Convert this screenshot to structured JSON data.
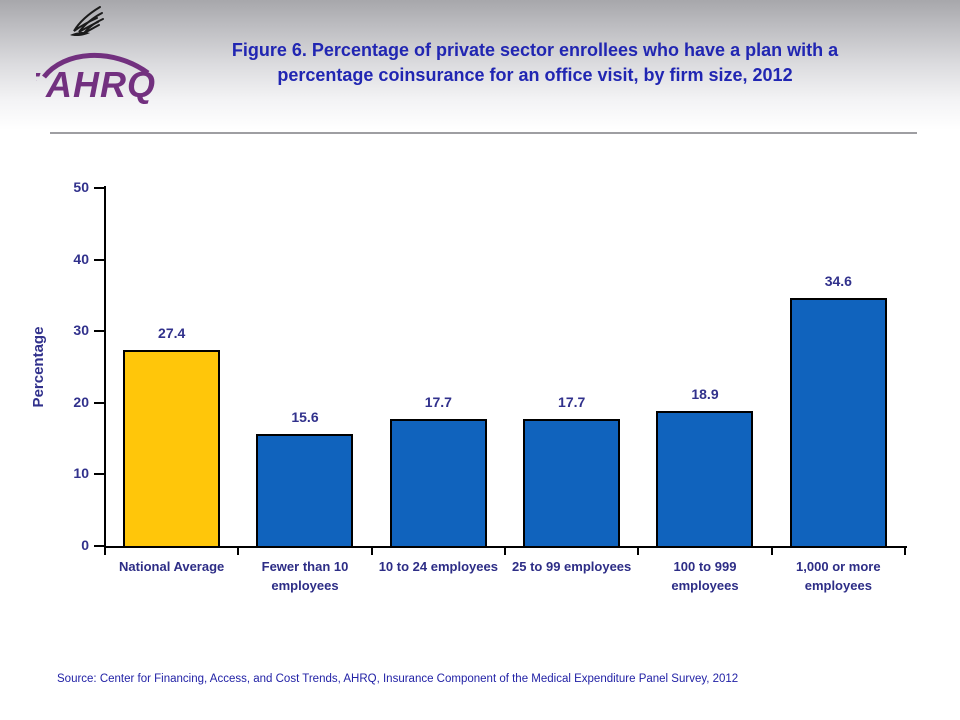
{
  "header": {
    "org_abbr": "AHRQ",
    "title_line1": "Figure 6. Percentage of private sector enrollees who have a plan with a",
    "title_line2": "percentage coinsurance for an office visit, by firm size, 2012"
  },
  "chart_data": {
    "type": "bar",
    "title": "Figure 6. Percentage of private sector enrollees who have a plan with a percentage coinsurance for an office visit, by firm size, 2012",
    "xlabel": "",
    "ylabel": "Percentage",
    "ylim": [
      0,
      50
    ],
    "yticks": [
      0,
      10,
      20,
      30,
      40,
      50
    ],
    "grid": false,
    "legend": "none",
    "categories": [
      "National Average",
      "Fewer than 10 employees",
      "10 to 24 employees",
      "25 to 99 employees",
      "100 to 999 employees",
      "1,000 or more employees"
    ],
    "category_labels": [
      "National Average",
      "Fewer than 10\nemployees",
      "10 to 24 employees",
      "25 to 99 employees",
      "100 to 999\nemployees",
      "1,000 or more\nemployees"
    ],
    "values": [
      27.4,
      15.6,
      17.7,
      17.7,
      18.9,
      34.6
    ],
    "bar_colors": [
      "#ffc60a",
      "#1063bd",
      "#1063bd",
      "#1063bd",
      "#1063bd",
      "#1063bd"
    ]
  },
  "colors": {
    "title_blue": "#2126b2",
    "chart_label_navy": "#31318c",
    "bar_yellow": "#ffc60a",
    "bar_blue": "#1063bd",
    "logo_purple": "#72307f",
    "divider_gray": "#9e9ea2",
    "source_blue": "#2222a6"
  },
  "source": "Source: Center for Financing, Access, and Cost Trends, AHRQ, Insurance Component of the Medical Expenditure Panel Survey, 2012"
}
